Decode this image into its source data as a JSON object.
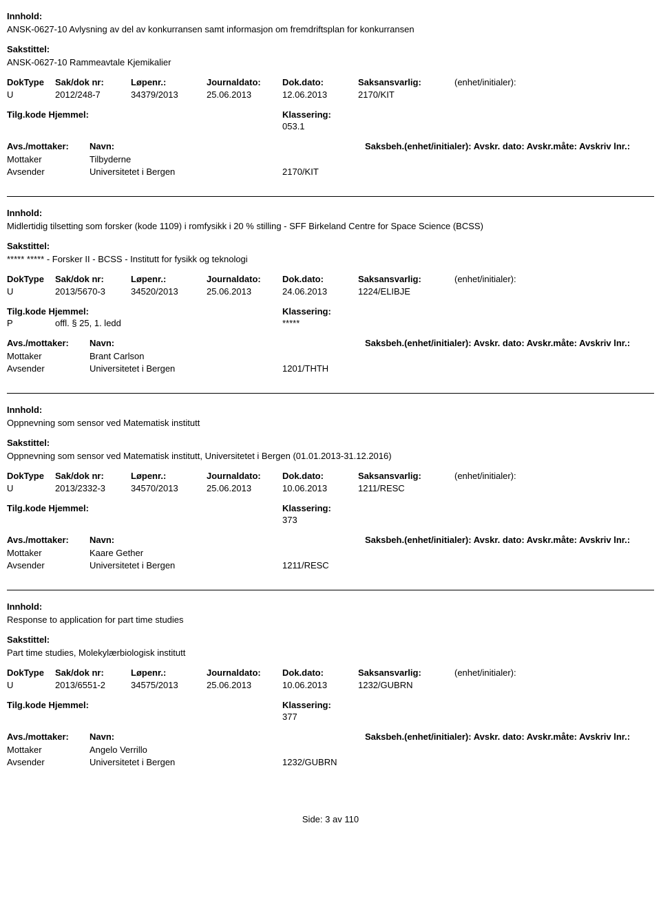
{
  "labels": {
    "innhold": "Innhold:",
    "sakstittel": "Sakstittel:",
    "doktype": "DokType",
    "sakdok": "Sak/dok nr:",
    "lopenr": "Løpenr.:",
    "journaldato": "Journaldato:",
    "dokdato": "Dok.dato:",
    "saksansvarlig": "Saksansvarlig:",
    "enhet": "(enhet/initialer):",
    "tilgkode": "Tilg.kode",
    "hjemmel": "Hjemmel:",
    "klassering": "Klassering:",
    "avsmottaker": "Avs./mottaker:",
    "navn": "Navn:",
    "saksbeh": "Saksbeh.(enhet/initialer): Avskr. dato:  Avskr.måte:  Avskriv lnr.:",
    "mottaker": "Mottaker",
    "avsender": "Avsender"
  },
  "records": [
    {
      "innhold": "ANSK-0627-10 Avlysning av del av konkurransen samt informasjon om fremdriftsplan for konkurransen",
      "sakstittel": "ANSK-0627-10 Rammeavtale Kjemikalier",
      "doktype": "U",
      "sakdok": "2012/248-7",
      "lopenr": "34379/2013",
      "journaldato": "25.06.2013",
      "dokdato": "12.06.2013",
      "saksansvarlig": "2170/KIT",
      "tilgkode": "",
      "hjemmel": "",
      "klassering": "053.1",
      "mottaker_navn": "Tilbyderne",
      "avsender_navn": "Universitetet i Bergen",
      "avsender_code": "2170/KIT"
    },
    {
      "innhold": "Midlertidig tilsetting som forsker (kode 1109) i romfysikk i 20 % stilling - SFF Birkeland Centre for Space Science (BCSS)",
      "sakstittel": "***** ***** - Forsker II - BCSS - Institutt for fysikk og teknologi",
      "doktype": "U",
      "sakdok": "2013/5670-3",
      "lopenr": "34520/2013",
      "journaldato": "25.06.2013",
      "dokdato": "24.06.2013",
      "saksansvarlig": "1224/ELIBJE",
      "tilgkode": "P",
      "hjemmel": "offl. § 25, 1. ledd",
      "klassering": "*****",
      "mottaker_navn": "Brant Carlson",
      "avsender_navn": "Universitetet i Bergen",
      "avsender_code": "1201/THTH"
    },
    {
      "innhold": "Oppnevning som sensor ved Matematisk institutt",
      "sakstittel": "Oppnevning som sensor ved Matematisk institutt, Universitetet i Bergen (01.01.2013-31.12.2016)",
      "doktype": "U",
      "sakdok": "2013/2332-3",
      "lopenr": "34570/2013",
      "journaldato": "25.06.2013",
      "dokdato": "10.06.2013",
      "saksansvarlig": "1211/RESC",
      "tilgkode": "",
      "hjemmel": "",
      "klassering": "373",
      "mottaker_navn": "Kaare Gether",
      "avsender_navn": "Universitetet i Bergen",
      "avsender_code": "1211/RESC"
    },
    {
      "innhold": "Response to application for part time studies",
      "sakstittel": "Part time studies, Molekylærbiologisk institutt",
      "doktype": "U",
      "sakdok": "2013/6551-2",
      "lopenr": "34575/2013",
      "journaldato": "25.06.2013",
      "dokdato": "10.06.2013",
      "saksansvarlig": "1232/GUBRN",
      "tilgkode": "",
      "hjemmel": "",
      "klassering": "377",
      "mottaker_navn": "Angelo Verrillo",
      "avsender_navn": "Universitetet i Bergen",
      "avsender_code": "1232/GUBRN"
    }
  ],
  "footer": {
    "prefix": "Side:",
    "page": "3",
    "sep": "av",
    "total": "110"
  }
}
